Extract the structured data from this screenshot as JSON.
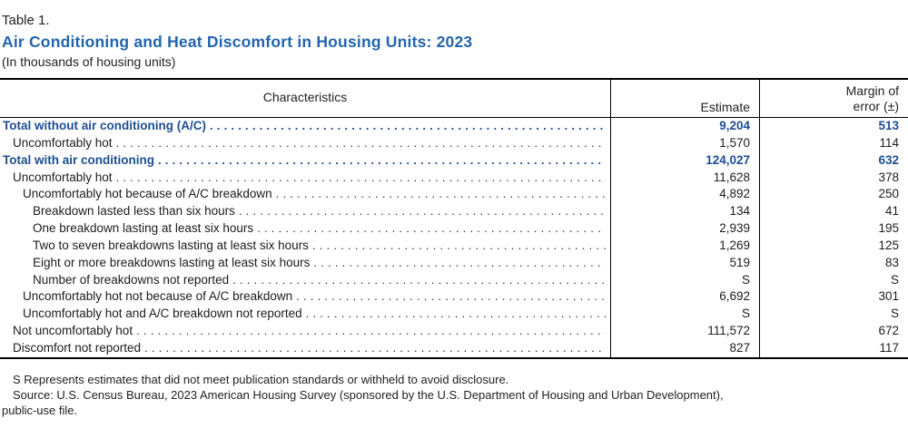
{
  "page": {
    "table_number": "Table 1.",
    "title": "Air Conditioning and Heat Discomfort in Housing Units: 2023",
    "subtitle": "(In thousands of housing units)"
  },
  "table": {
    "columns": {
      "characteristics": "Characteristics",
      "estimate": "Estimate",
      "moe_line1": "Margin of",
      "moe_line2": "error (±)"
    },
    "rows": [
      {
        "label": "Total without air conditioning (A/C)",
        "indent": 0,
        "bold": true,
        "estimate": "9,204",
        "moe": "513"
      },
      {
        "label": "Uncomfortably hot",
        "indent": 1,
        "bold": false,
        "estimate": "1,570",
        "moe": "114"
      },
      {
        "label": "Total with air conditioning",
        "indent": 0,
        "bold": true,
        "estimate": "124,027",
        "moe": "632"
      },
      {
        "label": "Uncomfortably hot",
        "indent": 1,
        "bold": false,
        "estimate": "11,628",
        "moe": "378"
      },
      {
        "label": "Uncomfortably hot because of A/C breakdown",
        "indent": 2,
        "bold": false,
        "estimate": "4,892",
        "moe": "250"
      },
      {
        "label": "Breakdown lasted less than six hours",
        "indent": 3,
        "bold": false,
        "estimate": "134",
        "moe": "41"
      },
      {
        "label": "One breakdown lasting at least six hours",
        "indent": 3,
        "bold": false,
        "estimate": "2,939",
        "moe": "195"
      },
      {
        "label": "Two to seven breakdowns lasting at least six hours",
        "indent": 3,
        "bold": false,
        "estimate": "1,269",
        "moe": "125"
      },
      {
        "label": "Eight or more breakdowns lasting at least six hours",
        "indent": 3,
        "bold": false,
        "estimate": "519",
        "moe": "83"
      },
      {
        "label": "Number of breakdowns not reported",
        "indent": 3,
        "bold": false,
        "estimate": "S",
        "moe": "S"
      },
      {
        "label": "Uncomfortably hot not because of A/C breakdown",
        "indent": 2,
        "bold": false,
        "estimate": "6,692",
        "moe": "301"
      },
      {
        "label": "Uncomfortably hot and A/C breakdown not reported",
        "indent": 2,
        "bold": false,
        "estimate": "S",
        "moe": "S"
      },
      {
        "label": "Not uncomfortably hot",
        "indent": 1,
        "bold": false,
        "estimate": "111,572",
        "moe": "672"
      },
      {
        "label": "Discomfort not reported",
        "indent": 1,
        "bold": false,
        "estimate": "827",
        "moe": "117"
      }
    ]
  },
  "footnotes": {
    "s_note": "S Represents estimates that did not meet publication standards or withheld to avoid disclosure.",
    "source_note_line1": "Source: U.S. Census Bureau, 2023 American Housing Survey (sponsored by the U.S. Department of Housing and Urban Development),",
    "source_note_line2": "public-use file."
  },
  "colors": {
    "title_blue": "#2365AE",
    "row_blue": "#1D4E94"
  }
}
